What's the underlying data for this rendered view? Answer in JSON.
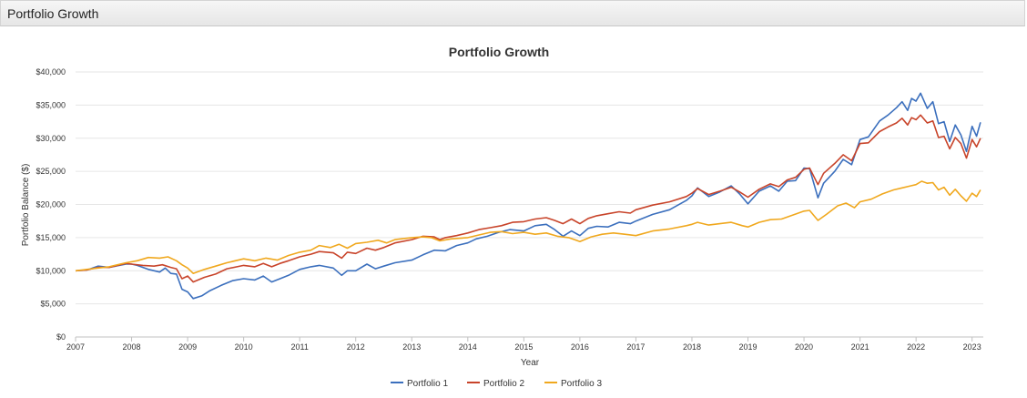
{
  "panel": {
    "title": "Portfolio Growth"
  },
  "chart_data": {
    "type": "line",
    "title": "Portfolio Growth",
    "xlabel": "Year",
    "ylabel": "Portfolio Balance ($)",
    "xlim": [
      2007,
      2023.2
    ],
    "ylim": [
      0,
      40000
    ],
    "x_ticks": [
      "2007",
      "2008",
      "2009",
      "2010",
      "2011",
      "2012",
      "2013",
      "2014",
      "2015",
      "2016",
      "2017",
      "2018",
      "2019",
      "2020",
      "2021",
      "2022",
      "2023"
    ],
    "y_ticks": [
      "$0",
      "$5,000",
      "$10,000",
      "$15,000",
      "$20,000",
      "$25,000",
      "$30,000",
      "$35,000",
      "$40,000"
    ],
    "grid": true,
    "legend_position": "bottom",
    "series": [
      {
        "name": "Portfolio 1",
        "color": "#3b6fbd",
        "points": [
          [
            2007.0,
            10000
          ],
          [
            2007.2,
            10100
          ],
          [
            2007.4,
            10700
          ],
          [
            2007.6,
            10500
          ],
          [
            2007.9,
            11000
          ],
          [
            2008.0,
            11000
          ],
          [
            2008.1,
            10800
          ],
          [
            2008.3,
            10200
          ],
          [
            2008.5,
            9800
          ],
          [
            2008.6,
            10400
          ],
          [
            2008.7,
            9600
          ],
          [
            2008.8,
            9500
          ],
          [
            2008.9,
            7200
          ],
          [
            2009.0,
            6800
          ],
          [
            2009.1,
            5800
          ],
          [
            2009.25,
            6200
          ],
          [
            2009.4,
            7000
          ],
          [
            2009.6,
            7800
          ],
          [
            2009.8,
            8500
          ],
          [
            2010.0,
            8800
          ],
          [
            2010.2,
            8600
          ],
          [
            2010.35,
            9200
          ],
          [
            2010.5,
            8300
          ],
          [
            2010.65,
            8800
          ],
          [
            2010.8,
            9300
          ],
          [
            2011.0,
            10200
          ],
          [
            2011.2,
            10600
          ],
          [
            2011.35,
            10800
          ],
          [
            2011.6,
            10400
          ],
          [
            2011.75,
            9300
          ],
          [
            2011.85,
            10000
          ],
          [
            2012.0,
            10000
          ],
          [
            2012.2,
            11000
          ],
          [
            2012.35,
            10300
          ],
          [
            2012.5,
            10700
          ],
          [
            2012.7,
            11200
          ],
          [
            2013.0,
            11600
          ],
          [
            2013.2,
            12400
          ],
          [
            2013.4,
            13100
          ],
          [
            2013.6,
            13000
          ],
          [
            2013.8,
            13800
          ],
          [
            2014.0,
            14200
          ],
          [
            2014.15,
            14800
          ],
          [
            2014.35,
            15200
          ],
          [
            2014.55,
            15800
          ],
          [
            2014.75,
            16200
          ],
          [
            2015.0,
            16000
          ],
          [
            2015.2,
            16800
          ],
          [
            2015.4,
            17000
          ],
          [
            2015.55,
            16200
          ],
          [
            2015.7,
            15200
          ],
          [
            2015.85,
            16000
          ],
          [
            2016.0,
            15300
          ],
          [
            2016.15,
            16400
          ],
          [
            2016.3,
            16700
          ],
          [
            2016.5,
            16600
          ],
          [
            2016.7,
            17300
          ],
          [
            2016.9,
            17100
          ],
          [
            2017.0,
            17500
          ],
          [
            2017.3,
            18500
          ],
          [
            2017.6,
            19200
          ],
          [
            2017.9,
            20600
          ],
          [
            2018.0,
            21300
          ],
          [
            2018.1,
            22500
          ],
          [
            2018.3,
            21200
          ],
          [
            2018.5,
            21900
          ],
          [
            2018.7,
            22800
          ],
          [
            2018.85,
            21600
          ],
          [
            2019.0,
            20100
          ],
          [
            2019.2,
            22000
          ],
          [
            2019.4,
            22800
          ],
          [
            2019.55,
            22000
          ],
          [
            2019.7,
            23500
          ],
          [
            2019.85,
            23600
          ],
          [
            2020.0,
            25500
          ],
          [
            2020.1,
            25400
          ],
          [
            2020.25,
            21000
          ],
          [
            2020.35,
            23200
          ],
          [
            2020.55,
            25000
          ],
          [
            2020.7,
            26800
          ],
          [
            2020.85,
            26000
          ],
          [
            2021.0,
            29800
          ],
          [
            2021.15,
            30200
          ],
          [
            2021.35,
            32600
          ],
          [
            2021.5,
            33500
          ],
          [
            2021.65,
            34600
          ],
          [
            2021.75,
            35500
          ],
          [
            2021.85,
            34200
          ],
          [
            2021.92,
            36000
          ],
          [
            2022.0,
            35600
          ],
          [
            2022.08,
            36800
          ],
          [
            2022.2,
            34500
          ],
          [
            2022.3,
            35500
          ],
          [
            2022.4,
            32200
          ],
          [
            2022.5,
            32500
          ],
          [
            2022.6,
            29500
          ],
          [
            2022.7,
            32000
          ],
          [
            2022.8,
            30500
          ],
          [
            2022.9,
            28000
          ],
          [
            2023.0,
            31800
          ],
          [
            2023.08,
            30300
          ],
          [
            2023.15,
            32400
          ]
        ]
      },
      {
        "name": "Portfolio 2",
        "color": "#c8442a",
        "points": [
          [
            2007.0,
            10000
          ],
          [
            2007.2,
            10100
          ],
          [
            2007.4,
            10500
          ],
          [
            2007.6,
            10500
          ],
          [
            2007.9,
            11100
          ],
          [
            2008.0,
            11000
          ],
          [
            2008.2,
            10800
          ],
          [
            2008.4,
            10700
          ],
          [
            2008.55,
            10900
          ],
          [
            2008.7,
            10500
          ],
          [
            2008.8,
            10300
          ],
          [
            2008.9,
            8800
          ],
          [
            2009.0,
            9200
          ],
          [
            2009.1,
            8300
          ],
          [
            2009.3,
            9000
          ],
          [
            2009.5,
            9500
          ],
          [
            2009.7,
            10300
          ],
          [
            2010.0,
            10800
          ],
          [
            2010.2,
            10600
          ],
          [
            2010.35,
            11100
          ],
          [
            2010.5,
            10600
          ],
          [
            2010.65,
            11100
          ],
          [
            2010.8,
            11500
          ],
          [
            2011.0,
            12100
          ],
          [
            2011.2,
            12500
          ],
          [
            2011.35,
            12900
          ],
          [
            2011.6,
            12700
          ],
          [
            2011.75,
            11900
          ],
          [
            2011.85,
            12800
          ],
          [
            2012.0,
            12600
          ],
          [
            2012.2,
            13400
          ],
          [
            2012.35,
            13100
          ],
          [
            2012.5,
            13500
          ],
          [
            2012.7,
            14200
          ],
          [
            2013.0,
            14700
          ],
          [
            2013.2,
            15200
          ],
          [
            2013.4,
            15100
          ],
          [
            2013.5,
            14700
          ],
          [
            2013.6,
            15000
          ],
          [
            2013.8,
            15300
          ],
          [
            2014.0,
            15700
          ],
          [
            2014.2,
            16200
          ],
          [
            2014.4,
            16500
          ],
          [
            2014.6,
            16800
          ],
          [
            2014.8,
            17300
          ],
          [
            2015.0,
            17400
          ],
          [
            2015.2,
            17800
          ],
          [
            2015.4,
            18000
          ],
          [
            2015.55,
            17600
          ],
          [
            2015.7,
            17100
          ],
          [
            2015.85,
            17800
          ],
          [
            2016.0,
            17100
          ],
          [
            2016.15,
            17900
          ],
          [
            2016.3,
            18300
          ],
          [
            2016.5,
            18600
          ],
          [
            2016.7,
            18900
          ],
          [
            2016.9,
            18700
          ],
          [
            2017.0,
            19200
          ],
          [
            2017.3,
            19900
          ],
          [
            2017.6,
            20400
          ],
          [
            2017.9,
            21200
          ],
          [
            2018.0,
            21700
          ],
          [
            2018.1,
            22400
          ],
          [
            2018.3,
            21500
          ],
          [
            2018.5,
            22000
          ],
          [
            2018.7,
            22600
          ],
          [
            2018.85,
            21900
          ],
          [
            2019.0,
            21100
          ],
          [
            2019.2,
            22300
          ],
          [
            2019.4,
            23100
          ],
          [
            2019.55,
            22700
          ],
          [
            2019.7,
            23700
          ],
          [
            2019.85,
            24100
          ],
          [
            2020.0,
            25300
          ],
          [
            2020.1,
            25500
          ],
          [
            2020.25,
            23000
          ],
          [
            2020.35,
            24700
          ],
          [
            2020.55,
            26200
          ],
          [
            2020.7,
            27500
          ],
          [
            2020.85,
            26600
          ],
          [
            2021.0,
            29200
          ],
          [
            2021.15,
            29300
          ],
          [
            2021.35,
            31000
          ],
          [
            2021.5,
            31700
          ],
          [
            2021.65,
            32300
          ],
          [
            2021.75,
            33000
          ],
          [
            2021.85,
            32000
          ],
          [
            2021.92,
            33100
          ],
          [
            2022.0,
            32800
          ],
          [
            2022.08,
            33500
          ],
          [
            2022.2,
            32300
          ],
          [
            2022.3,
            32600
          ],
          [
            2022.4,
            30100
          ],
          [
            2022.5,
            30300
          ],
          [
            2022.6,
            28400
          ],
          [
            2022.7,
            30100
          ],
          [
            2022.8,
            29200
          ],
          [
            2022.9,
            27000
          ],
          [
            2023.0,
            29800
          ],
          [
            2023.08,
            28700
          ],
          [
            2023.15,
            30000
          ]
        ]
      },
      {
        "name": "Portfolio 3",
        "color": "#f0a81e",
        "points": [
          [
            2007.0,
            10000
          ],
          [
            2007.2,
            10200
          ],
          [
            2007.4,
            10400
          ],
          [
            2007.6,
            10600
          ],
          [
            2007.9,
            11200
          ],
          [
            2008.1,
            11500
          ],
          [
            2008.3,
            12000
          ],
          [
            2008.5,
            11900
          ],
          [
            2008.65,
            12100
          ],
          [
            2008.8,
            11500
          ],
          [
            2008.9,
            10900
          ],
          [
            2009.0,
            10400
          ],
          [
            2009.1,
            9600
          ],
          [
            2009.3,
            10200
          ],
          [
            2009.5,
            10700
          ],
          [
            2009.7,
            11200
          ],
          [
            2010.0,
            11800
          ],
          [
            2010.2,
            11500
          ],
          [
            2010.4,
            11900
          ],
          [
            2010.6,
            11600
          ],
          [
            2010.8,
            12300
          ],
          [
            2011.0,
            12800
          ],
          [
            2011.2,
            13100
          ],
          [
            2011.35,
            13800
          ],
          [
            2011.55,
            13500
          ],
          [
            2011.7,
            14000
          ],
          [
            2011.85,
            13400
          ],
          [
            2012.0,
            14100
          ],
          [
            2012.2,
            14300
          ],
          [
            2012.4,
            14600
          ],
          [
            2012.55,
            14200
          ],
          [
            2012.7,
            14700
          ],
          [
            2013.0,
            15000
          ],
          [
            2013.2,
            15100
          ],
          [
            2013.35,
            15000
          ],
          [
            2013.5,
            14500
          ],
          [
            2013.7,
            14800
          ],
          [
            2014.0,
            15000
          ],
          [
            2014.2,
            15400
          ],
          [
            2014.4,
            15800
          ],
          [
            2014.6,
            15900
          ],
          [
            2014.8,
            15600
          ],
          [
            2015.0,
            15800
          ],
          [
            2015.2,
            15500
          ],
          [
            2015.4,
            15700
          ],
          [
            2015.6,
            15200
          ],
          [
            2015.8,
            15000
          ],
          [
            2016.0,
            14400
          ],
          [
            2016.2,
            15100
          ],
          [
            2016.4,
            15500
          ],
          [
            2016.6,
            15700
          ],
          [
            2016.8,
            15500
          ],
          [
            2017.0,
            15300
          ],
          [
            2017.3,
            16000
          ],
          [
            2017.6,
            16300
          ],
          [
            2017.9,
            16800
          ],
          [
            2018.0,
            17000
          ],
          [
            2018.1,
            17300
          ],
          [
            2018.3,
            16900
          ],
          [
            2018.5,
            17100
          ],
          [
            2018.7,
            17300
          ],
          [
            2018.9,
            16800
          ],
          [
            2019.0,
            16600
          ],
          [
            2019.2,
            17300
          ],
          [
            2019.4,
            17700
          ],
          [
            2019.6,
            17800
          ],
          [
            2019.8,
            18400
          ],
          [
            2020.0,
            19000
          ],
          [
            2020.1,
            19100
          ],
          [
            2020.25,
            17600
          ],
          [
            2020.4,
            18500
          ],
          [
            2020.6,
            19800
          ],
          [
            2020.75,
            20200
          ],
          [
            2020.9,
            19500
          ],
          [
            2021.0,
            20400
          ],
          [
            2021.2,
            20800
          ],
          [
            2021.4,
            21600
          ],
          [
            2021.6,
            22200
          ],
          [
            2021.75,
            22500
          ],
          [
            2021.9,
            22800
          ],
          [
            2022.0,
            23000
          ],
          [
            2022.1,
            23500
          ],
          [
            2022.2,
            23200
          ],
          [
            2022.3,
            23300
          ],
          [
            2022.4,
            22200
          ],
          [
            2022.5,
            22600
          ],
          [
            2022.6,
            21400
          ],
          [
            2022.7,
            22300
          ],
          [
            2022.8,
            21300
          ],
          [
            2022.9,
            20500
          ],
          [
            2023.0,
            21700
          ],
          [
            2023.08,
            21200
          ],
          [
            2023.15,
            22200
          ]
        ]
      }
    ]
  }
}
